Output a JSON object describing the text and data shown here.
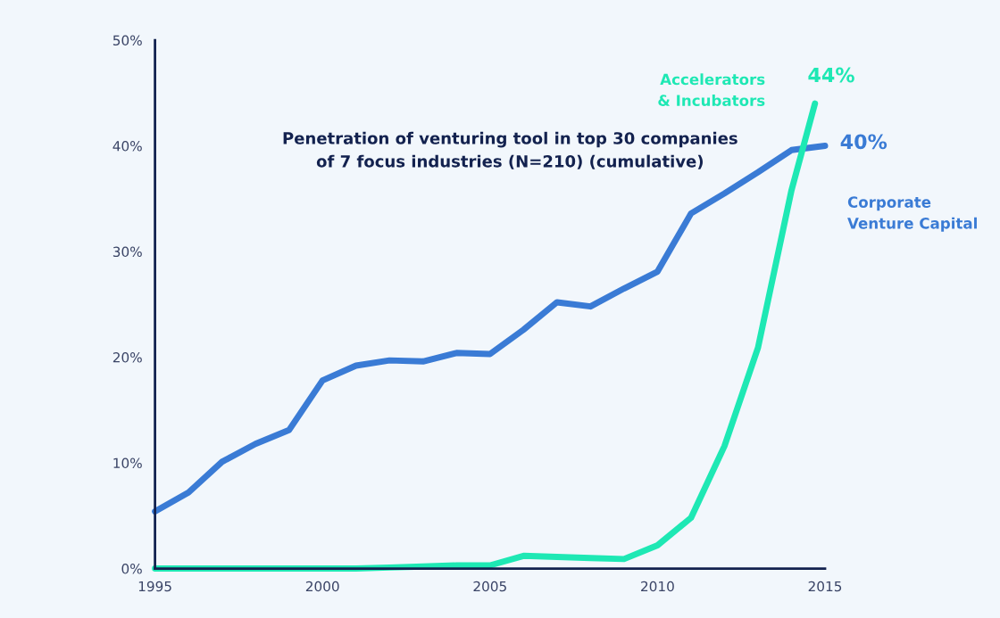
{
  "chart_data": {
    "type": "line",
    "title": "Penetration of venturing tool in top 30 companies\nof 7 focus industries (N=210) (cumulative)",
    "x": [
      1995,
      1996,
      1997,
      1998,
      1999,
      2000,
      2001,
      2002,
      2003,
      2004,
      2005,
      2006,
      2007,
      2008,
      2009,
      2010,
      2011,
      2012,
      2013,
      2014,
      2015
    ],
    "series": [
      {
        "name": "Corporate\nVenture Capital",
        "color": "#3a7bd5",
        "values": [
          5.4,
          7.2,
          10.1,
          11.8,
          13.1,
          17.8,
          19.2,
          19.7,
          19.6,
          20.4,
          20.3,
          22.6,
          25.2,
          24.8,
          26.5,
          28.1,
          33.6,
          35.5,
          37.5,
          39.6,
          40
        ]
      },
      {
        "name": "Accelerators\n& Incubators",
        "color": "#1ee8b4",
        "x": [
          1995,
          1996,
          1997,
          1998,
          1999,
          2000,
          2001,
          2002,
          2003,
          2004,
          2005,
          2006,
          2007,
          2008,
          2009,
          2010,
          2011,
          2012,
          2013,
          2014,
          2014.7
        ],
        "values": [
          0,
          0,
          0,
          0,
          0,
          0,
          0,
          0.1,
          0.2,
          0.3,
          0.3,
          1.2,
          1.1,
          1.0,
          0.9,
          2.2,
          4.8,
          11.6,
          20.9,
          35.8,
          44
        ]
      }
    ],
    "annotations": [
      {
        "text": "40%",
        "x": 2015,
        "y": 40
      },
      {
        "text": "44%",
        "x": 2014.7,
        "y": 44
      }
    ],
    "xlim": [
      1995,
      2015
    ],
    "xticks": [
      1995,
      2000,
      2005,
      2010,
      2015
    ],
    "ylim": [
      0,
      50
    ],
    "yticks": [
      {
        "value": 0,
        "label": "0%"
      },
      {
        "value": 10,
        "label": "10%"
      },
      {
        "value": 20,
        "label": "20%"
      },
      {
        "value": 30,
        "label": "30%"
      },
      {
        "value": 40,
        "label": "40%"
      },
      {
        "value": 50,
        "label": "50%"
      }
    ],
    "grid": false,
    "legend": false,
    "marker": "none",
    "line_style": "solid"
  }
}
